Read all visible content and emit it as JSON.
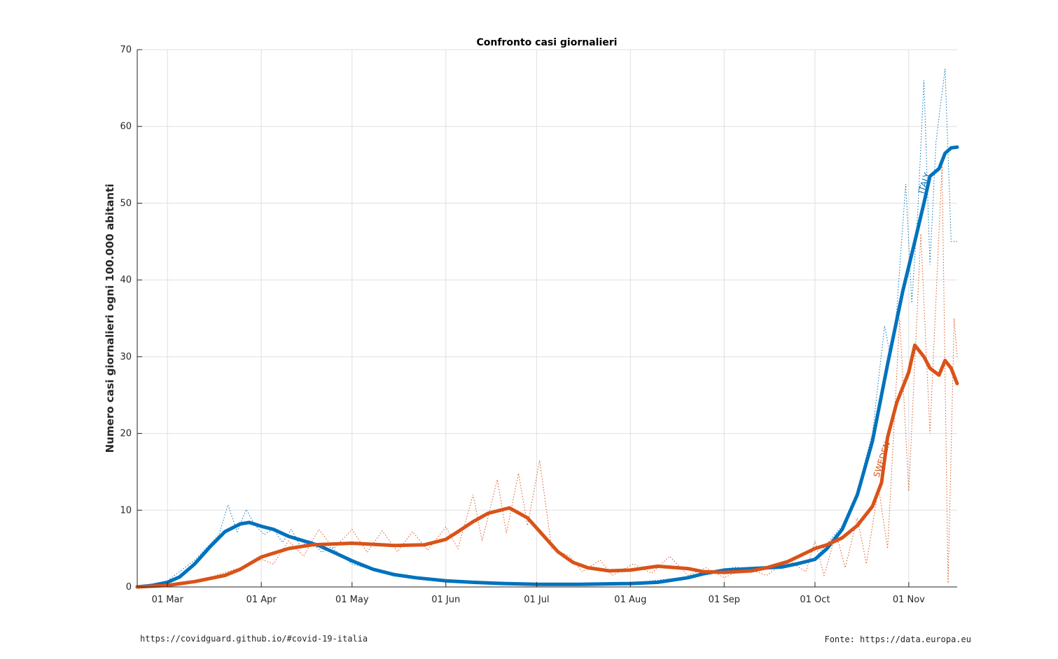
{
  "chart_data": {
    "type": "line",
    "title": "Confronto casi giornalieri",
    "ylabel": "Numero casi giornalieri ogni 100.000 abitanti",
    "xlabel": "",
    "x_range": [
      "2020-02-20",
      "2020-11-17"
    ],
    "ylim": [
      0,
      70
    ],
    "y_ticks": [
      0,
      10,
      20,
      30,
      40,
      50,
      60,
      70
    ],
    "x_ticks": [
      {
        "date": "2020-03-01",
        "label": "01 Mar"
      },
      {
        "date": "2020-04-01",
        "label": "01 Apr"
      },
      {
        "date": "2020-05-01",
        "label": "01 May"
      },
      {
        "date": "2020-06-01",
        "label": "01 Jun"
      },
      {
        "date": "2020-07-01",
        "label": "01 Jul"
      },
      {
        "date": "2020-08-01",
        "label": "01 Aug"
      },
      {
        "date": "2020-09-01",
        "label": "01 Sep"
      },
      {
        "date": "2020-10-01",
        "label": "01 Oct"
      },
      {
        "date": "2020-11-01",
        "label": "01 Nov"
      }
    ],
    "grid": true,
    "series": [
      {
        "name": "ITALY",
        "color": "#0072bd",
        "label_at": {
          "x": "2020-11-07",
          "y": 52.5
        },
        "smoothed": [
          [
            "2020-02-20",
            0
          ],
          [
            "2020-02-25",
            0.2
          ],
          [
            "2020-03-01",
            0.6
          ],
          [
            "2020-03-05",
            1.3
          ],
          [
            "2020-03-10",
            3.0
          ],
          [
            "2020-03-15",
            5.2
          ],
          [
            "2020-03-20",
            7.2
          ],
          [
            "2020-03-25",
            8.2
          ],
          [
            "2020-03-28",
            8.4
          ],
          [
            "2020-04-01",
            7.9
          ],
          [
            "2020-04-05",
            7.5
          ],
          [
            "2020-04-10",
            6.6
          ],
          [
            "2020-04-15",
            6.0
          ],
          [
            "2020-04-20",
            5.4
          ],
          [
            "2020-04-25",
            4.5
          ],
          [
            "2020-05-01",
            3.4
          ],
          [
            "2020-05-08",
            2.3
          ],
          [
            "2020-05-15",
            1.6
          ],
          [
            "2020-05-22",
            1.2
          ],
          [
            "2020-06-01",
            0.8
          ],
          [
            "2020-06-10",
            0.6
          ],
          [
            "2020-06-20",
            0.45
          ],
          [
            "2020-07-01",
            0.35
          ],
          [
            "2020-07-15",
            0.35
          ],
          [
            "2020-08-01",
            0.45
          ],
          [
            "2020-08-10",
            0.6
          ],
          [
            "2020-08-20",
            1.2
          ],
          [
            "2020-08-25",
            1.7
          ],
          [
            "2020-09-01",
            2.2
          ],
          [
            "2020-09-10",
            2.4
          ],
          [
            "2020-09-20",
            2.6
          ],
          [
            "2020-09-25",
            3.0
          ],
          [
            "2020-10-01",
            3.6
          ],
          [
            "2020-10-05",
            5.0
          ],
          [
            "2020-10-10",
            7.5
          ],
          [
            "2020-10-15",
            12.0
          ],
          [
            "2020-10-20",
            19.0
          ],
          [
            "2020-10-25",
            29.0
          ],
          [
            "2020-10-30",
            38.5
          ],
          [
            "2020-11-03",
            45.0
          ],
          [
            "2020-11-06",
            50.0
          ],
          [
            "2020-11-08",
            53.5
          ],
          [
            "2020-11-11",
            54.5
          ],
          [
            "2020-11-13",
            56.5
          ],
          [
            "2020-11-15",
            57.2
          ],
          [
            "2020-11-17",
            57.3
          ]
        ],
        "daily": [
          [
            "2020-02-20",
            0
          ],
          [
            "2020-03-01",
            0.8
          ],
          [
            "2020-03-10",
            3.5
          ],
          [
            "2020-03-18",
            6.8
          ],
          [
            "2020-03-21",
            10.7
          ],
          [
            "2020-03-24",
            7.2
          ],
          [
            "2020-03-27",
            10.1
          ],
          [
            "2020-03-30",
            8.0
          ],
          [
            "2020-04-02",
            6.8
          ],
          [
            "2020-04-05",
            7.6
          ],
          [
            "2020-04-08",
            5.8
          ],
          [
            "2020-04-11",
            7.5
          ],
          [
            "2020-04-14",
            5.2
          ],
          [
            "2020-04-17",
            6.1
          ],
          [
            "2020-04-21",
            4.5
          ],
          [
            "2020-04-24",
            5.2
          ],
          [
            "2020-05-01",
            3.0
          ],
          [
            "2020-05-15",
            1.4
          ],
          [
            "2020-06-01",
            0.7
          ],
          [
            "2020-07-01",
            0.35
          ],
          [
            "2020-08-01",
            0.5
          ],
          [
            "2020-08-20",
            1.3
          ],
          [
            "2020-09-01",
            2.3
          ],
          [
            "2020-09-05",
            2.6
          ],
          [
            "2020-09-10",
            2.1
          ],
          [
            "2020-09-20",
            2.8
          ],
          [
            "2020-10-01",
            3.7
          ],
          [
            "2020-10-10",
            8.0
          ],
          [
            "2020-10-15",
            12.5
          ],
          [
            "2020-10-20",
            20.0
          ],
          [
            "2020-10-24",
            34.0
          ],
          [
            "2020-10-26",
            30.0
          ],
          [
            "2020-10-28",
            36.0
          ],
          [
            "2020-10-31",
            52.5
          ],
          [
            "2020-11-02",
            37.0
          ],
          [
            "2020-11-04",
            49.0
          ],
          [
            "2020-11-06",
            66.0
          ],
          [
            "2020-11-08",
            42.0
          ],
          [
            "2020-11-10",
            58.0
          ],
          [
            "2020-11-13",
            67.5
          ],
          [
            "2020-11-15",
            45.0
          ],
          [
            "2020-11-17",
            45.0
          ]
        ]
      },
      {
        "name": "SWEDEN",
        "color": "#d95319",
        "label_at": {
          "x": "2020-10-24",
          "y": 16.5
        },
        "smoothed": [
          [
            "2020-02-20",
            0
          ],
          [
            "2020-03-01",
            0.2
          ],
          [
            "2020-03-10",
            0.7
          ],
          [
            "2020-03-20",
            1.5
          ],
          [
            "2020-03-25",
            2.3
          ],
          [
            "2020-04-01",
            3.9
          ],
          [
            "2020-04-10",
            5.0
          ],
          [
            "2020-04-18",
            5.5
          ],
          [
            "2020-05-01",
            5.7
          ],
          [
            "2020-05-15",
            5.4
          ],
          [
            "2020-05-25",
            5.5
          ],
          [
            "2020-06-01",
            6.2
          ],
          [
            "2020-06-05",
            7.2
          ],
          [
            "2020-06-10",
            8.5
          ],
          [
            "2020-06-15",
            9.6
          ],
          [
            "2020-06-22",
            10.3
          ],
          [
            "2020-06-28",
            9.0
          ],
          [
            "2020-07-03",
            6.8
          ],
          [
            "2020-07-08",
            4.6
          ],
          [
            "2020-07-13",
            3.2
          ],
          [
            "2020-07-18",
            2.5
          ],
          [
            "2020-07-25",
            2.1
          ],
          [
            "2020-08-01",
            2.2
          ],
          [
            "2020-08-10",
            2.7
          ],
          [
            "2020-08-20",
            2.4
          ],
          [
            "2020-08-25",
            2.0
          ],
          [
            "2020-09-01",
            1.9
          ],
          [
            "2020-09-10",
            2.1
          ],
          [
            "2020-09-15",
            2.5
          ],
          [
            "2020-09-22",
            3.3
          ],
          [
            "2020-10-01",
            5.0
          ],
          [
            "2020-10-05",
            5.5
          ],
          [
            "2020-10-10",
            6.4
          ],
          [
            "2020-10-15",
            8.0
          ],
          [
            "2020-10-20",
            10.5
          ],
          [
            "2020-10-23",
            13.6
          ],
          [
            "2020-10-25",
            19.5
          ],
          [
            "2020-10-28",
            24.0
          ],
          [
            "2020-11-01",
            28.0
          ],
          [
            "2020-11-03",
            31.5
          ],
          [
            "2020-11-06",
            30.0
          ],
          [
            "2020-11-08",
            28.5
          ],
          [
            "2020-11-11",
            27.6
          ],
          [
            "2020-11-13",
            29.5
          ],
          [
            "2020-11-15",
            28.5
          ],
          [
            "2020-11-17",
            26.5
          ]
        ],
        "daily": [
          [
            "2020-02-20",
            0
          ],
          [
            "2020-03-10",
            0.6
          ],
          [
            "2020-03-25",
            2.5
          ],
          [
            "2020-04-01",
            3.6
          ],
          [
            "2020-04-05",
            3.0
          ],
          [
            "2020-04-10",
            6.0
          ],
          [
            "2020-04-15",
            4.0
          ],
          [
            "2020-04-20",
            7.5
          ],
          [
            "2020-04-25",
            5.0
          ],
          [
            "2020-05-01",
            7.5
          ],
          [
            "2020-05-06",
            4.5
          ],
          [
            "2020-05-11",
            7.3
          ],
          [
            "2020-05-16",
            4.6
          ],
          [
            "2020-05-21",
            7.2
          ],
          [
            "2020-05-26",
            4.8
          ],
          [
            "2020-06-01",
            7.8
          ],
          [
            "2020-06-05",
            5.0
          ],
          [
            "2020-06-10",
            12.0
          ],
          [
            "2020-06-13",
            6.0
          ],
          [
            "2020-06-18",
            14.0
          ],
          [
            "2020-06-21",
            7.0
          ],
          [
            "2020-06-25",
            14.8
          ],
          [
            "2020-06-28",
            8.0
          ],
          [
            "2020-07-02",
            16.5
          ],
          [
            "2020-07-06",
            5.0
          ],
          [
            "2020-07-12",
            4.0
          ],
          [
            "2020-07-16",
            2.0
          ],
          [
            "2020-07-22",
            3.5
          ],
          [
            "2020-07-26",
            1.5
          ],
          [
            "2020-08-02",
            3.0
          ],
          [
            "2020-08-08",
            1.8
          ],
          [
            "2020-08-14",
            4.0
          ],
          [
            "2020-08-20",
            1.5
          ],
          [
            "2020-08-26",
            2.5
          ],
          [
            "2020-09-01",
            1.2
          ],
          [
            "2020-09-08",
            2.5
          ],
          [
            "2020-09-15",
            1.5
          ],
          [
            "2020-09-22",
            3.5
          ],
          [
            "2020-09-28",
            2.0
          ],
          [
            "2020-10-01",
            6.0
          ],
          [
            "2020-10-04",
            1.5
          ],
          [
            "2020-10-08",
            7.0
          ],
          [
            "2020-10-11",
            2.5
          ],
          [
            "2020-10-15",
            9.0
          ],
          [
            "2020-10-18",
            3.0
          ],
          [
            "2020-10-22",
            13.0
          ],
          [
            "2020-10-25",
            5.0
          ],
          [
            "2020-10-29",
            35.0
          ],
          [
            "2020-11-01",
            12.5
          ],
          [
            "2020-11-05",
            46.0
          ],
          [
            "2020-11-08",
            20.0
          ],
          [
            "2020-11-12",
            55.0
          ],
          [
            "2020-11-14",
            0.5
          ],
          [
            "2020-11-16",
            35.0
          ],
          [
            "2020-11-17",
            30.0
          ]
        ]
      }
    ]
  },
  "footer": {
    "left": "https://covidguard.github.io/#covid-19-italia",
    "right": "Fonte: https://data.europa.eu"
  }
}
